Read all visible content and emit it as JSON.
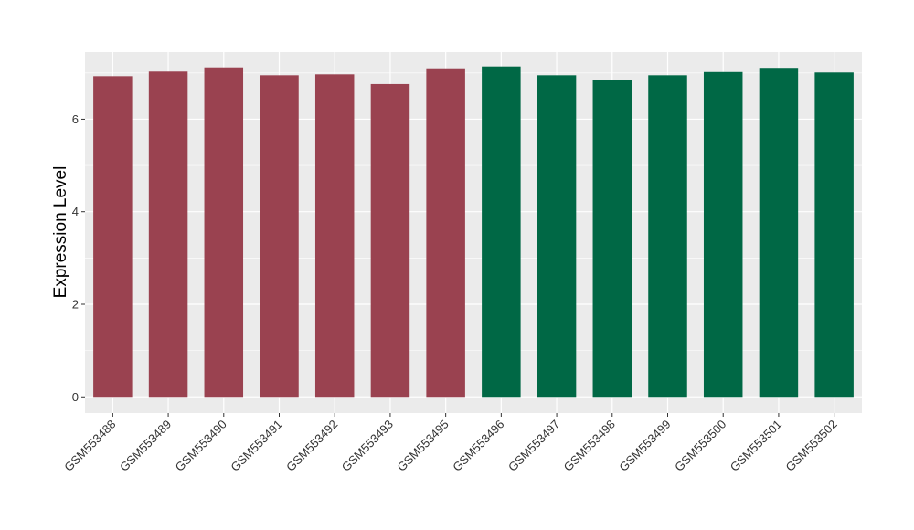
{
  "chart_data": {
    "type": "bar",
    "title": "",
    "xlabel": "",
    "ylabel": "Expression Level",
    "ylim": [
      -0.35,
      7.45
    ],
    "yticks": [
      0,
      2,
      4,
      6
    ],
    "grid": true,
    "legend": "none",
    "categories": [
      "GSM553488",
      "GSM553489",
      "GSM553490",
      "GSM553491",
      "GSM553492",
      "GSM553493",
      "GSM553495",
      "GSM553496",
      "GSM553497",
      "GSM553498",
      "GSM553499",
      "GSM553500",
      "GSM553501",
      "GSM553502"
    ],
    "values": [
      6.93,
      7.03,
      7.12,
      6.95,
      6.97,
      6.76,
      7.1,
      7.14,
      6.95,
      6.85,
      6.95,
      7.02,
      7.11,
      7.01
    ],
    "bar_colors": [
      "#9a4250",
      "#9a4250",
      "#9a4250",
      "#9a4250",
      "#9a4250",
      "#9a4250",
      "#9a4250",
      "#006845",
      "#006845",
      "#006845",
      "#006845",
      "#006845",
      "#006845",
      "#006845"
    ]
  },
  "colors": {
    "panel_background": "#ebebeb",
    "grid_line": "#ffffff",
    "tick_mark": "#333333"
  }
}
